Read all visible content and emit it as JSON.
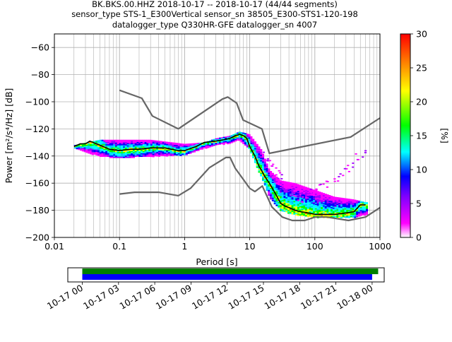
{
  "figure": {
    "title_lines": [
      "BK.BKS.00.HHZ   2018-10-17 -- 2018-10-17  (44/44 segments)",
      "sensor_type STS-1_E300Vertical sensor_sn 38505_E300-STS1-120-198",
      "datalogger_type Q330HR-GFE datalogger_sn 4007"
    ]
  },
  "chart_data": [
    {
      "type": "heatmap",
      "xlabel": "Period [s]",
      "ylabel": "Power [m²/s⁴/Hz] [dB]",
      "x_scale": "log",
      "xlim": [
        0.01,
        1000
      ],
      "ylim": [
        -200,
        -50
      ],
      "x_ticks": [
        0.01,
        0.1,
        1,
        10,
        100,
        1000
      ],
      "x_tick_labels": [
        "0.01",
        "0.1",
        "1",
        "10",
        "100",
        "1000"
      ],
      "y_ticks": [
        -200,
        -180,
        -160,
        -140,
        -120,
        -100,
        -80,
        -60
      ],
      "y_tick_labels": [
        "−200",
        "−180",
        "−160",
        "−140",
        "−120",
        "−100",
        "−80",
        "−60"
      ],
      "grid": true,
      "colorbar": {
        "label": "[%]",
        "range": [
          0,
          30
        ],
        "ticks": [
          0,
          5,
          10,
          15,
          20,
          25,
          30
        ],
        "tick_labels": [
          "0",
          "5",
          "10",
          "15",
          "20",
          "25",
          "30"
        ],
        "colormap": [
          "#ffffff",
          "#ff00ff",
          "#8000ff",
          "#0000ff",
          "#00ffff",
          "#00ff00",
          "#ffff00",
          "#ff8000",
          "#ff0000"
        ]
      },
      "series": [
        {
          "role": "high noise model",
          "color": "#666666",
          "x": [
            0.1,
            0.22,
            0.32,
            0.8,
            3.8,
            4.6,
            6.3,
            7.9,
            15.4,
            20,
            354.8,
            1000
          ],
          "y": [
            -91.5,
            -97.4,
            -110.5,
            -120,
            -98,
            -96.5,
            -101,
            -113.5,
            -120,
            -138,
            -126,
            -112
          ]
        },
        {
          "role": "low noise model",
          "color": "#666666",
          "x": [
            0.1,
            0.17,
            0.4,
            0.8,
            1.24,
            2.4,
            4.3,
            5.0,
            6.0,
            10.0,
            12.0,
            15.6,
            21.9,
            31.6,
            45.0,
            70.0,
            101.0,
            154.0,
            328.0,
            600.0,
            1000.0
          ],
          "y": [
            -168,
            -166.7,
            -166.7,
            -169.2,
            -163.7,
            -148.6,
            -141.1,
            -141.1,
            -149,
            -163.8,
            -166.2,
            -162.1,
            -177.5,
            -185,
            -187.5,
            -187.5,
            -185,
            -185,
            -187.5,
            -185,
            -178
          ]
        },
        {
          "role": "mode PSD",
          "color": "#000000",
          "x": [
            0.02,
            0.025,
            0.03,
            0.035,
            0.05,
            0.07,
            0.1,
            0.15,
            0.2,
            0.3,
            0.5,
            0.8,
            1.0,
            1.5,
            2.0,
            3.0,
            4.0,
            5.0,
            6.0,
            7.0,
            8.0,
            9.0,
            10.0,
            12.0,
            14.0,
            15.0,
            17.0,
            20.0,
            25.0,
            30.0,
            35.0,
            40.0,
            50.0,
            60.0,
            80.0,
            100.0,
            150.0,
            200.0,
            300.0,
            400.0,
            500.0,
            600.0
          ],
          "y": [
            -133,
            -131,
            -131,
            -129,
            -132,
            -135,
            -136,
            -135,
            -135,
            -134,
            -134,
            -136,
            -136,
            -133,
            -130,
            -129,
            -128,
            -127,
            -125,
            -124,
            -125,
            -127,
            -133,
            -140,
            -148,
            -150,
            -155,
            -160,
            -168,
            -175,
            -177,
            -178,
            -180,
            -181,
            -182,
            -183,
            -183,
            -183,
            -182,
            -181,
            -176,
            -176
          ]
        }
      ],
      "density_min_curve": {
        "x": [
          0.02,
          0.05,
          0.1,
          0.3,
          1.0,
          2.0,
          3.0,
          5.0,
          7.0,
          10.0,
          15.0,
          20.0,
          30.0,
          50.0,
          100.0,
          200.0,
          400.0,
          600.0
        ],
        "y": [
          -134,
          -140,
          -141,
          -140,
          -139,
          -134,
          -132,
          -130,
          -128,
          -135,
          -155,
          -170,
          -180,
          -183,
          -185,
          -185,
          -185,
          -183
        ]
      },
      "density_max_curve": {
        "x": [
          0.02,
          0.05,
          0.1,
          0.3,
          1.0,
          2.0,
          3.0,
          5.0,
          7.0,
          10.0,
          15.0,
          20.0,
          30.0,
          50.0,
          100.0,
          200.0,
          400.0,
          600.0
        ],
        "y": [
          -132,
          -128,
          -128,
          -128,
          -131,
          -130,
          -127,
          -125,
          -122,
          -124,
          -135,
          -150,
          -158,
          -160,
          -165,
          -170,
          -172,
          -174
        ]
      },
      "scatter_outliers": {
        "x": [
          15,
          18,
          20,
          22,
          25,
          28,
          30,
          35,
          40,
          45,
          50,
          60,
          70,
          80,
          90,
          100,
          120,
          150,
          200,
          250,
          300,
          350,
          450,
          550
        ],
        "y": [
          -138,
          -141,
          -144,
          -147,
          -152,
          -155,
          -158,
          -162,
          -165,
          -167,
          -170,
          -172,
          -168,
          -165,
          -164,
          -163,
          -162,
          -160,
          -157,
          -154,
          -150,
          -146,
          -140,
          -138
        ]
      }
    },
    {
      "type": "bar",
      "role": "data coverage",
      "x_tick_labels": [
        "10-17 00",
        "10-17 03",
        "10-17 06",
        "10-17 09",
        "10-17 12",
        "10-17 15",
        "10-17 18",
        "10-17 21",
        "10-18 00"
      ],
      "x_range_hours": [
        -1.2,
        25
      ],
      "series": [
        {
          "color": "#008000",
          "start_hours": 0.0,
          "end_hours": 24.5
        },
        {
          "color": "#0000ff",
          "start_hours": 0.0,
          "end_hours": 24.0
        }
      ]
    }
  ]
}
